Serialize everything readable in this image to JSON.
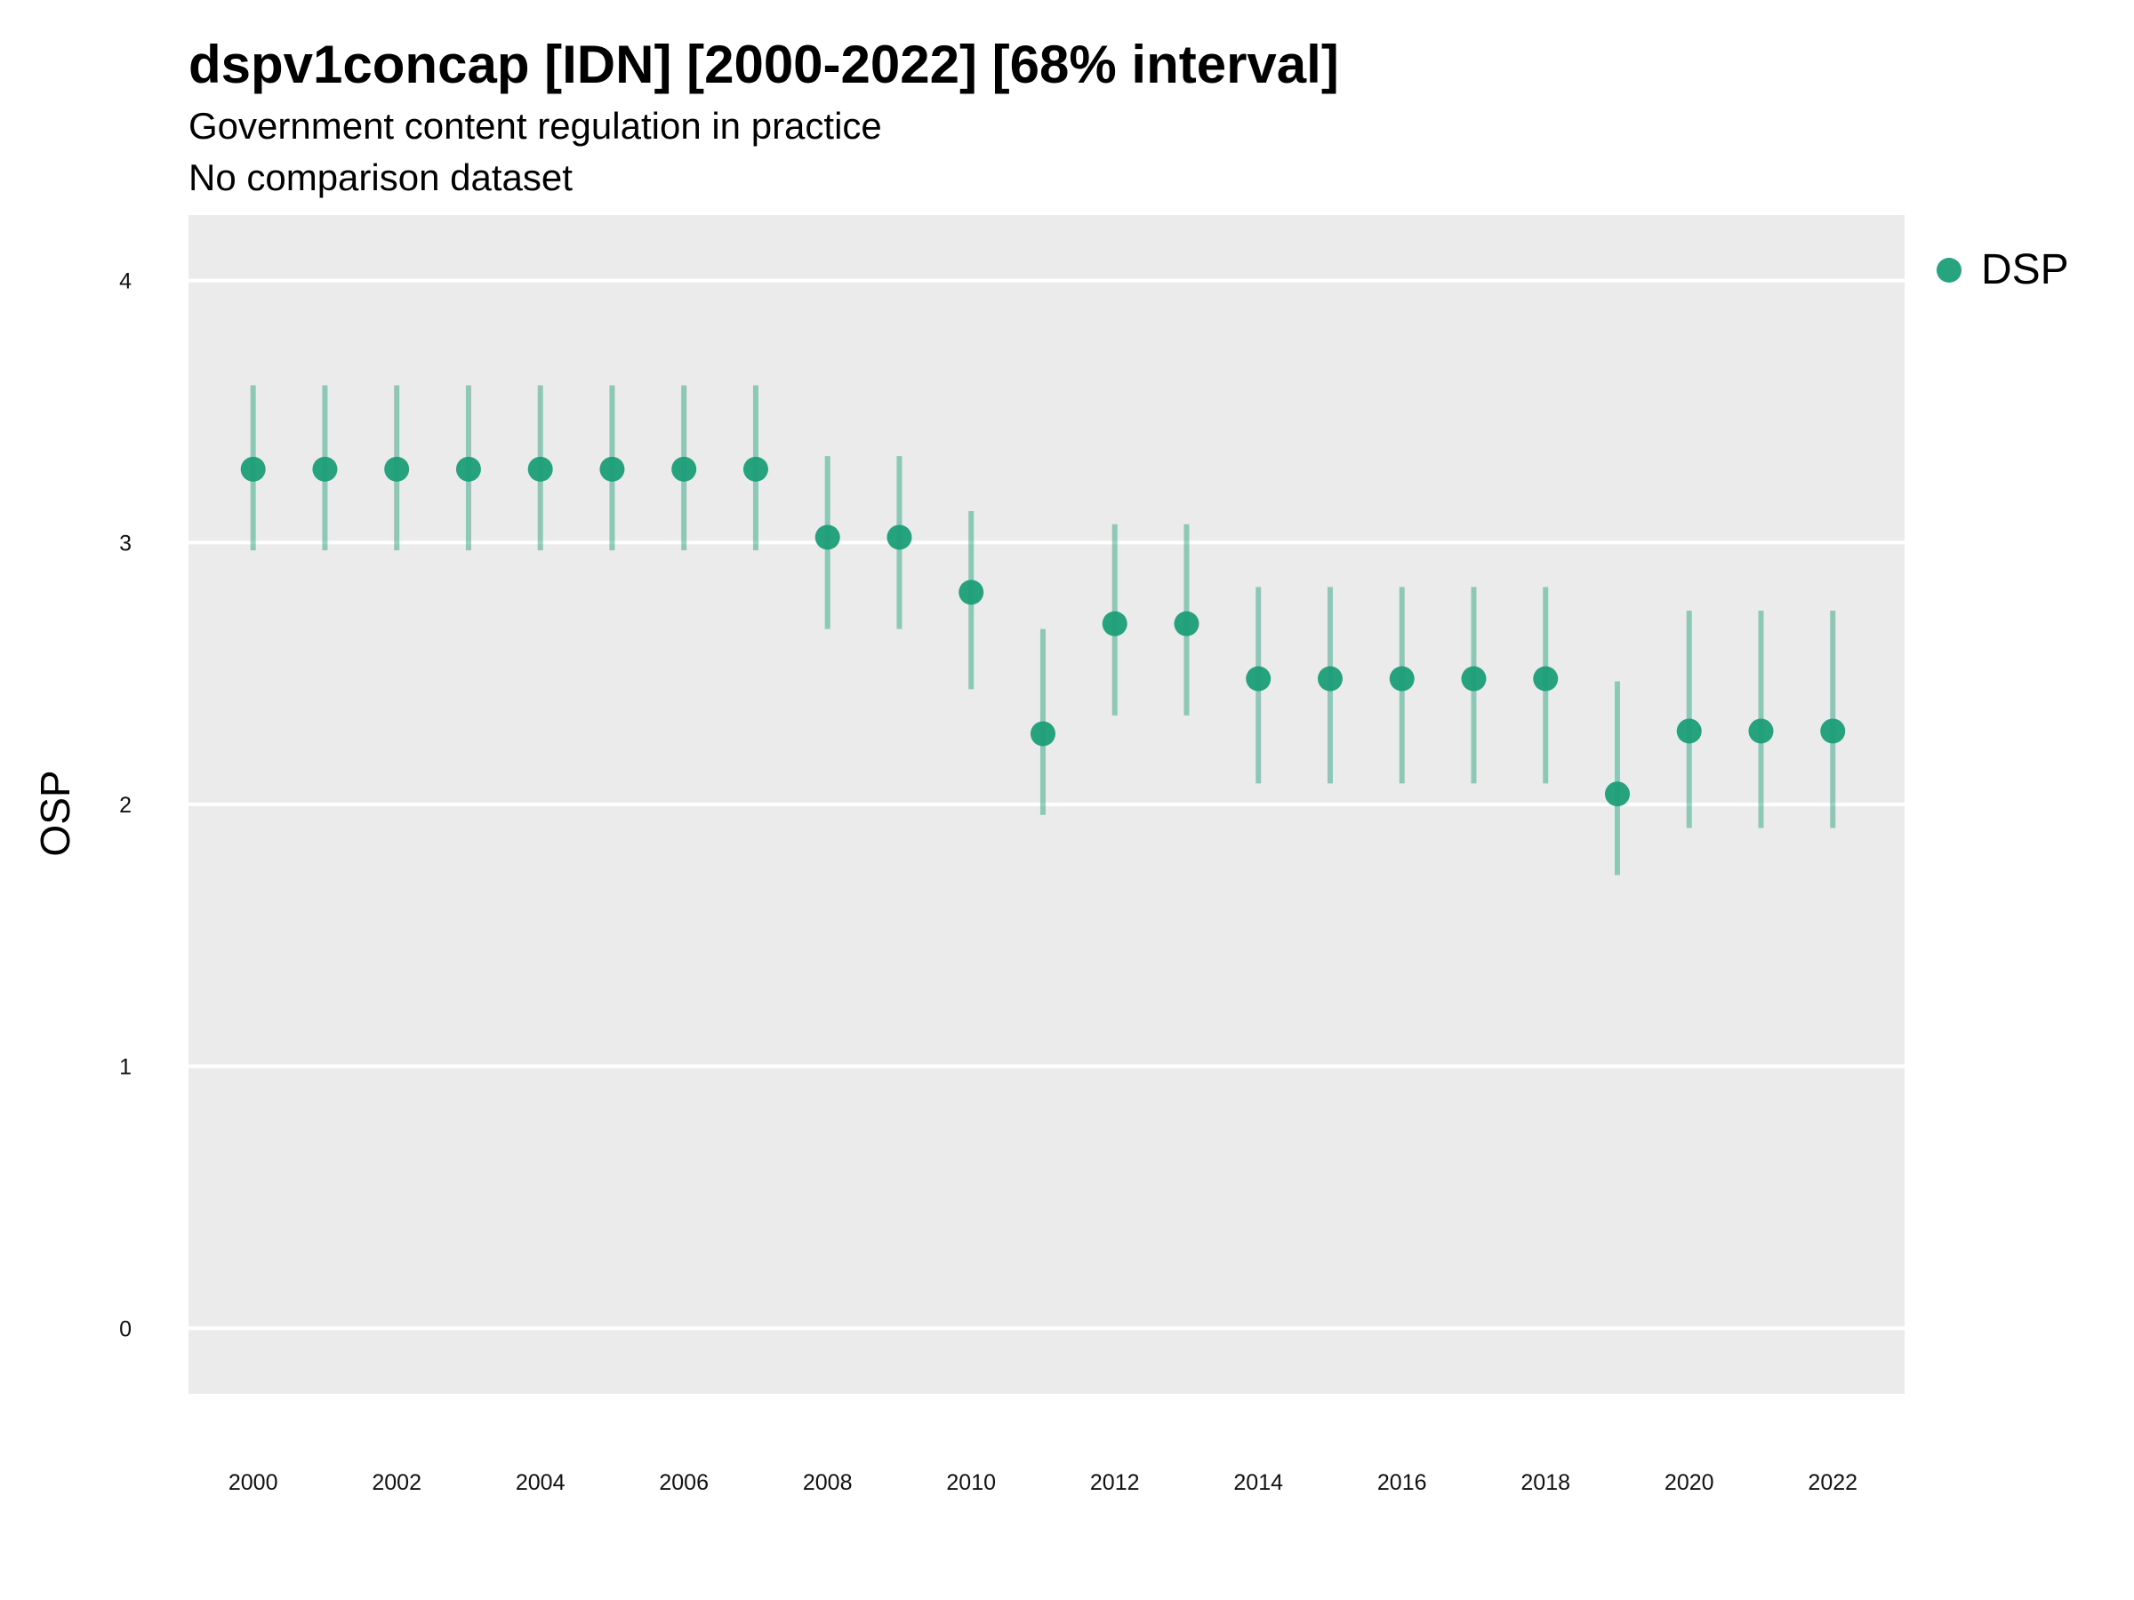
{
  "chart_data": {
    "type": "scatter",
    "title": "dspv1concap [IDN] [2000-2022] [68% interval]",
    "subtitle": "Government content regulation in practice",
    "caption": "No comparison dataset",
    "xlabel": "",
    "ylabel": "OSP",
    "xlim": [
      1999.1,
      2023.0
    ],
    "ylim": [
      -0.25,
      4.25
    ],
    "x_ticks": [
      "2000",
      "2002",
      "2004",
      "2006",
      "2008",
      "2010",
      "2012",
      "2014",
      "2016",
      "2018",
      "2020",
      "2022"
    ],
    "y_ticks": [
      "0",
      "1",
      "2",
      "3",
      "4"
    ],
    "grid": true,
    "legend_position": "top-right",
    "series": [
      {
        "name": "DSP",
        "color": "#1b9e77",
        "x": [
          2000,
          2001,
          2002,
          2003,
          2004,
          2005,
          2006,
          2007,
          2008,
          2009,
          2010,
          2011,
          2012,
          2013,
          2014,
          2015,
          2016,
          2017,
          2018,
          2019,
          2020,
          2021,
          2022
        ],
        "y": [
          3.28,
          3.28,
          3.28,
          3.28,
          3.28,
          3.28,
          3.28,
          3.28,
          3.02,
          3.02,
          2.81,
          2.27,
          2.69,
          2.69,
          2.48,
          2.48,
          2.48,
          2.48,
          2.48,
          2.04,
          2.28,
          2.28,
          2.28
        ],
        "lower": [
          2.97,
          2.97,
          2.97,
          2.97,
          2.97,
          2.97,
          2.97,
          2.97,
          2.67,
          2.67,
          2.44,
          1.96,
          2.34,
          2.34,
          2.08,
          2.08,
          2.08,
          2.08,
          2.08,
          1.73,
          1.91,
          1.91,
          1.91
        ],
        "upper": [
          3.6,
          3.6,
          3.6,
          3.6,
          3.6,
          3.6,
          3.6,
          3.6,
          3.33,
          3.33,
          3.12,
          2.67,
          3.07,
          3.07,
          2.83,
          2.83,
          2.83,
          2.83,
          2.83,
          2.47,
          2.74,
          2.74,
          2.74
        ]
      }
    ]
  }
}
